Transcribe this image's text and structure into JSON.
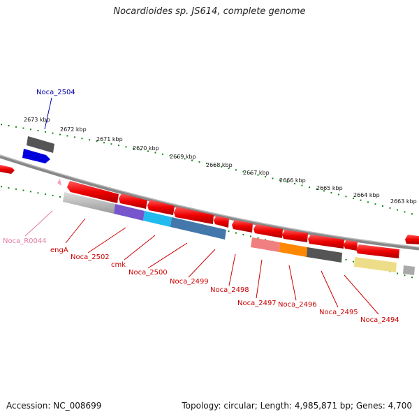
{
  "title": "Nocardioides sp. JS614, complete genome",
  "footer": {
    "accession": "Accession: NC_008699",
    "topology": "Topology: circular; Length: 4,985,871 bp; Genes: 4,700"
  },
  "scale_labels": [
    "2673 kbp",
    "2672 kbp",
    "2671 kbp",
    "2670 kbp",
    "2669 kbp",
    "2668 kbp",
    "2667 kbp",
    "2666 kbp",
    "2665 kbp",
    "2664 kbp",
    "2663 kbp"
  ],
  "colors": {
    "gene": "#ee0000",
    "rna": "#e57aa6",
    "forward_highlight": "#0000dd",
    "backbone": "#888888",
    "ruler": "#118811"
  },
  "genes_forward": [
    {
      "label": "Noca_2504",
      "label_color": "#0000aa"
    }
  ],
  "genes_reverse": [
    {
      "label": "Noca_R0044",
      "label_color": "#e57aa6"
    },
    {
      "label": "engA",
      "label_color": "#cc0000"
    },
    {
      "label": "Noca_2502",
      "label_color": "#cc0000"
    },
    {
      "label": "cmk",
      "label_color": "#cc0000"
    },
    {
      "label": "Noca_2500",
      "label_color": "#cc0000"
    },
    {
      "label": "Noca_2499",
      "label_color": "#cc0000"
    },
    {
      "label": "Noca_2498",
      "label_color": "#cc0000"
    },
    {
      "label": "Noca_2497",
      "label_color": "#cc0000"
    },
    {
      "label": "Noca_2496",
      "label_color": "#cc0000"
    },
    {
      "label": "Noca_2495",
      "label_color": "#cc0000"
    },
    {
      "label": "Noca_2494",
      "label_color": "#cc0000"
    }
  ]
}
